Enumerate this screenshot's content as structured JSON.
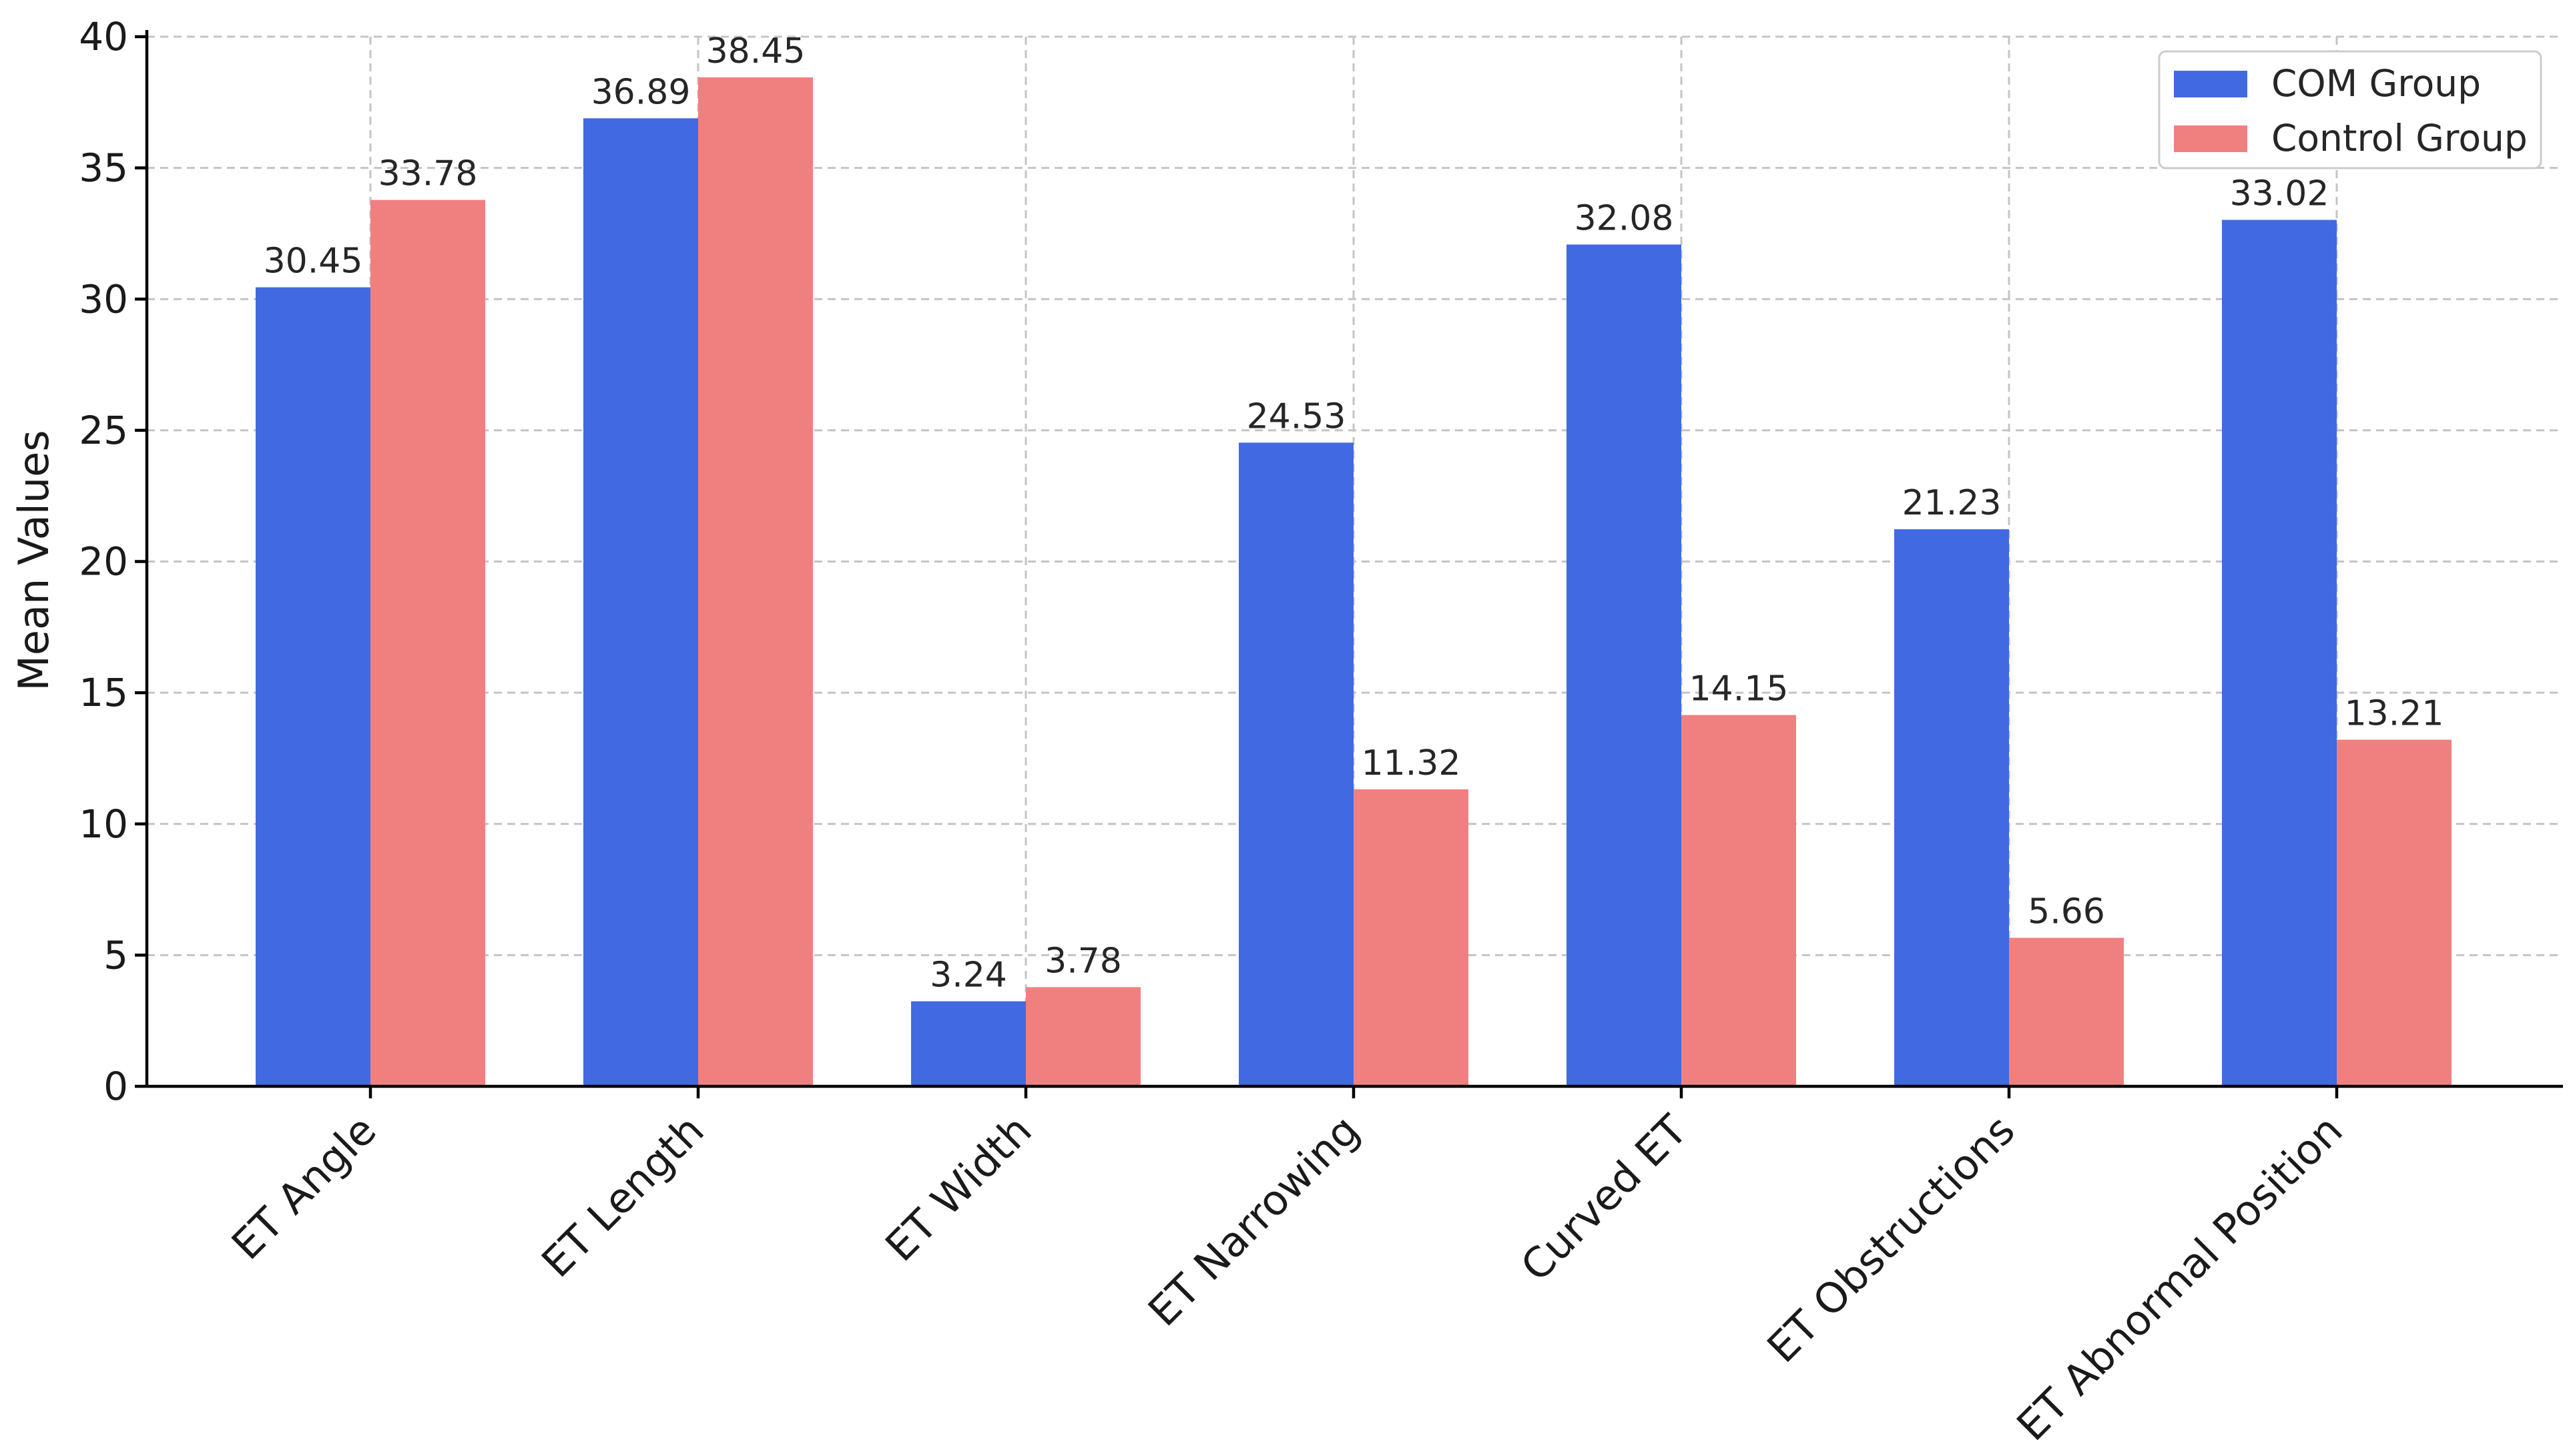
{
  "chart_data": {
    "type": "bar",
    "title": "",
    "xlabel": "",
    "ylabel": "Mean Values",
    "ylim": [
      0,
      40
    ],
    "yticks": [
      0,
      5,
      10,
      15,
      20,
      25,
      30,
      35,
      40
    ],
    "grid": true,
    "legend_position": "top-right",
    "categories": [
      "ET Angle",
      "ET Length",
      "ET Width",
      "ET Narrowing",
      "Curved ET",
      "ET Obstructions",
      "ET Abnormal Position"
    ],
    "series": [
      {
        "name": "COM Group",
        "color": "#4169e1",
        "values": [
          30.45,
          36.89,
          3.24,
          24.53,
          32.08,
          21.23,
          33.02
        ],
        "labels": [
          "30.45",
          "36.89",
          "3.24",
          "24.53",
          "32.08",
          "21.23",
          "33.02"
        ]
      },
      {
        "name": "Control Group",
        "color": "#f08080",
        "values": [
          33.78,
          38.45,
          3.78,
          11.32,
          14.15,
          5.66,
          13.21
        ],
        "labels": [
          "33.78",
          "38.45",
          "3.78",
          "11.32",
          "14.15",
          "5.66",
          "13.21"
        ]
      }
    ]
  }
}
